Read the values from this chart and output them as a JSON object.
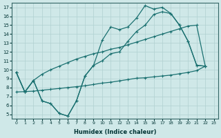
{
  "xlabel": "Humidex (Indice chaleur)",
  "xlim": [
    -0.5,
    23.5
  ],
  "ylim": [
    4.5,
    17.5
  ],
  "xticks": [
    0,
    1,
    2,
    3,
    4,
    5,
    6,
    7,
    8,
    9,
    10,
    11,
    12,
    13,
    14,
    15,
    16,
    17,
    18,
    19,
    20,
    21,
    22,
    23
  ],
  "yticks": [
    5,
    6,
    7,
    8,
    9,
    10,
    11,
    12,
    13,
    14,
    15,
    16,
    17
  ],
  "bg_color": "#cfe8e8",
  "grid_color": "#b0d0d0",
  "line_color": "#1a7070",
  "line1_x": [
    0,
    1,
    2,
    3,
    4,
    5,
    6,
    7,
    8,
    9,
    10,
    11,
    12,
    13,
    14,
    15,
    16,
    17,
    18,
    19,
    20,
    21,
    22
  ],
  "line1_y": [
    9.7,
    7.5,
    8.8,
    6.5,
    6.2,
    5.1,
    4.8,
    6.5,
    9.3,
    10.5,
    13.3,
    14.8,
    14.5,
    14.8,
    15.8,
    17.2,
    16.8,
    17.0,
    16.3,
    15.0,
    13.2,
    10.5,
    10.4
  ],
  "line2_x": [
    0,
    1,
    2,
    3,
    4,
    5,
    6,
    7,
    8,
    9,
    10,
    11,
    12,
    13,
    14,
    15,
    16,
    17,
    18,
    19,
    20,
    21,
    22
  ],
  "line2_y": [
    9.7,
    7.5,
    8.8,
    6.5,
    6.2,
    5.1,
    4.8,
    6.5,
    9.3,
    10.5,
    11.0,
    11.8,
    12.0,
    13.2,
    14.3,
    15.0,
    16.2,
    16.5,
    16.3,
    15.0,
    13.2,
    10.5,
    10.4
  ],
  "line3_x": [
    0,
    1,
    2,
    3,
    4,
    5,
    6,
    7,
    8,
    9,
    10,
    11,
    12,
    13,
    14,
    15,
    16,
    17,
    18,
    19,
    20,
    21,
    22
  ],
  "line3_y": [
    9.7,
    7.5,
    8.8,
    9.5,
    10.0,
    10.4,
    10.8,
    11.2,
    11.5,
    11.8,
    12.0,
    12.3,
    12.5,
    12.8,
    13.1,
    13.4,
    13.7,
    14.0,
    14.3,
    14.6,
    14.9,
    15.0,
    10.4
  ],
  "line4_x": [
    0,
    1,
    2,
    3,
    4,
    5,
    6,
    7,
    8,
    9,
    10,
    11,
    12,
    13,
    14,
    15,
    16,
    17,
    18,
    19,
    20,
    21,
    22
  ],
  "line4_y": [
    7.5,
    7.55,
    7.6,
    7.7,
    7.8,
    7.9,
    8.0,
    8.1,
    8.2,
    8.35,
    8.5,
    8.6,
    8.75,
    8.9,
    9.05,
    9.1,
    9.2,
    9.3,
    9.4,
    9.55,
    9.7,
    9.9,
    10.4
  ]
}
